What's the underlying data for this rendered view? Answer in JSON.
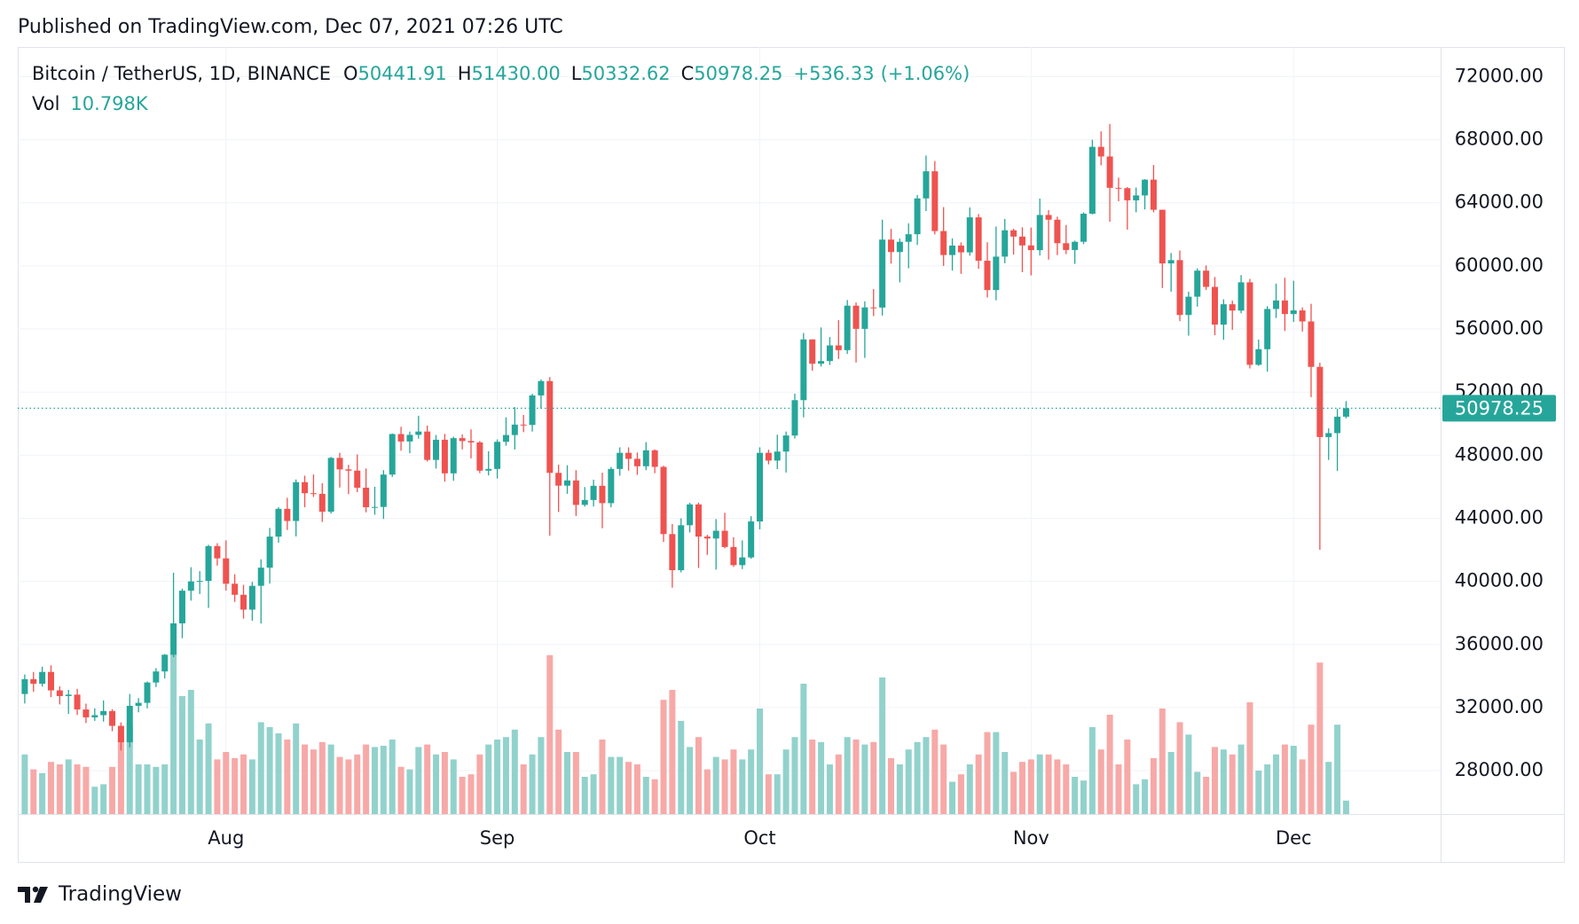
{
  "header": "Published on TradingView.com, Dec 07, 2021 07:26 UTC",
  "footer": "TradingView",
  "chart_data": {
    "type": "candlestick",
    "title": "Bitcoin / TetherUS, 1D, BINANCE",
    "ohlc_legend": [
      {
        "key": "O",
        "value": 50441.91,
        "label": "50441.91"
      },
      {
        "key": "H",
        "value": 51430,
        "label": "51430.00"
      },
      {
        "key": "L",
        "value": 50332.62,
        "label": "50332.62"
      },
      {
        "key": "C",
        "value": 50978.25,
        "label": "50978.25"
      }
    ],
    "change": {
      "value": 536.33,
      "label": "+536.33"
    },
    "change_pct": {
      "value": 1.06,
      "label": "(+1.06%)"
    },
    "volume_title": "Vol",
    "volume_last": {
      "value": 10798,
      "label": "10.798K"
    },
    "last_price": {
      "value": 50978.25,
      "label": "50978.25"
    },
    "up_color": "#26a69a",
    "down_color": "#ef5350",
    "volume_up_color": "#92d2cc",
    "volume_down_color": "#f7a9a7",
    "grid": true,
    "xlim": [
      -0.8,
      161.8
    ],
    "xticks": [
      {
        "value": 23,
        "label": "Aug"
      },
      {
        "value": 54,
        "label": "Sep"
      },
      {
        "value": 84,
        "label": "Oct"
      },
      {
        "value": 115,
        "label": "Nov"
      },
      {
        "value": 145,
        "label": "Dec"
      }
    ],
    "ylim": [
      25250,
      73880
    ],
    "yticks": [
      {
        "value": 28000,
        "label": "28000.00"
      },
      {
        "value": 32000,
        "label": "32000.00"
      },
      {
        "value": 36000,
        "label": "36000.00"
      },
      {
        "value": 40000,
        "label": "40000.00"
      },
      {
        "value": 44000,
        "label": "44000.00"
      },
      {
        "value": 48000,
        "label": "48000.00"
      },
      {
        "value": 52000,
        "label": "52000.00"
      },
      {
        "value": 56000,
        "label": "56000.00"
      },
      {
        "value": 60000,
        "label": "60000.00"
      },
      {
        "value": 64000,
        "label": "64000.00"
      },
      {
        "value": 68000,
        "label": "68000.00"
      },
      {
        "value": 72000,
        "label": "72000.00"
      }
    ],
    "open": [
      32860,
      33800,
      33510,
      34260,
      33090,
      32730,
      32820,
      31880,
      31380,
      31520,
      31780,
      30840,
      29800,
      32110,
      32300,
      33590,
      34290,
      35350,
      37340,
      39410,
      40000,
      40030,
      42240,
      41460,
      39850,
      39150,
      38210,
      39720,
      40870,
      42840,
      44600,
      43830,
      46290,
      45590,
      45550,
      44420,
      47830,
      47100,
      47020,
      45940,
      44700,
      44720,
      46770,
      49340,
      48870,
      49290,
      49500,
      47700,
      48980,
      46850,
      49080,
      48900,
      48810,
      47020,
      47130,
      48850,
      49280,
      49940,
      49920,
      51790,
      52700,
      46880,
      46070,
      46400,
      44850,
      45160,
      46060,
      44960,
      47130,
      48150,
      47770,
      47300,
      48310,
      47260,
      43000,
      40710,
      43560,
      44880,
      42840,
      42720,
      43210,
      42180,
      41030,
      41520,
      43800,
      48150,
      47660,
      48230,
      49250,
      51490,
      55340,
      53800,
      53970,
      54960,
      54660,
      57480,
      56010,
      57370,
      57360,
      61670,
      60880,
      61530,
      62010,
      64280,
      66000,
      62210,
      60690,
      61290,
      60860,
      63080,
      60330,
      58470,
      60590,
      62260,
      61860,
      61300,
      61000,
      63230,
      62930,
      61440,
      61010,
      61530,
      63310,
      67550,
      66940,
      64950,
      64930,
      64160,
      64470,
      65470,
      63560,
      60160,
      60370,
      56890,
      58050,
      59700,
      58670,
      56280,
      57570,
      57170,
      58960,
      53730,
      54720,
      57270,
      57810,
      56950,
      57180,
      56480,
      53600,
      49150,
      49400,
      50441.91
    ],
    "high": [
      34100,
      34260,
      34590,
      34680,
      33340,
      33120,
      33190,
      32250,
      31950,
      32450,
      31900,
      31060,
      32860,
      32600,
      33650,
      34500,
      35400,
      40550,
      39540,
      40900,
      40650,
      42320,
      42420,
      42600,
      40450,
      39780,
      39970,
      41400,
      43390,
      44700,
      45300,
      46460,
      46700,
      46780,
      46220,
      47890,
      48150,
      47390,
      48050,
      47160,
      46000,
      47050,
      49380,
      49800,
      49500,
      50500,
      49880,
      49280,
      49350,
      49180,
      49310,
      49640,
      48900,
      48250,
      49000,
      50400,
      51050,
      50560,
      51900,
      52800,
      52950,
      47400,
      47360,
      47050,
      45980,
      46450,
      46890,
      47250,
      48500,
      48500,
      48170,
      48830,
      48370,
      47330,
      43640,
      44000,
      44980,
      45000,
      42950,
      43950,
      44350,
      42800,
      42600,
      44130,
      48500,
      48350,
      49300,
      49500,
      51900,
      55750,
      55350,
      56100,
      55490,
      56560,
      57840,
      57680,
      57760,
      58530,
      62930,
      62350,
      61730,
      62700,
      64500,
      67000,
      66650,
      63730,
      61750,
      61490,
      63710,
      63290,
      61500,
      62500,
      62980,
      62360,
      62450,
      62430,
      64270,
      63540,
      63120,
      62600,
      61600,
      63400,
      68000,
      68530,
      69000,
      65600,
      65000,
      64970,
      65500,
      66400,
      63570,
      60820,
      60980,
      58370,
      59850,
      60030,
      59300,
      57880,
      57800,
      59420,
      59180,
      55330,
      57450,
      58880,
      59250,
      59060,
      57370,
      57600,
      53860,
      49700,
      50950,
      51430
    ],
    "low": [
      32260,
      33000,
      33330,
      32660,
      32200,
      31600,
      31530,
      31020,
      31160,
      31110,
      30500,
      29280,
      29480,
      31700,
      31950,
      33300,
      33850,
      35200,
      36400,
      38780,
      39200,
      38320,
      41000,
      39420,
      38700,
      37640,
      37510,
      37330,
      39860,
      42450,
      43260,
      42850,
      44700,
      45350,
      43770,
      44300,
      45950,
      45530,
      45660,
      44380,
      44220,
      43960,
      46620,
      48280,
      48130,
      49050,
      47600,
      47150,
      46320,
      46380,
      48370,
      47800,
      46860,
      46720,
      46520,
      48600,
      48360,
      49460,
      49500,
      50950,
      42900,
      44400,
      45550,
      44150,
      44740,
      44750,
      43370,
      44700,
      46700,
      47020,
      46750,
      47050,
      46860,
      42500,
      39600,
      40570,
      43100,
      40850,
      41680,
      40750,
      42100,
      40920,
      40780,
      41430,
      43300,
      47420,
      47120,
      46900,
      49060,
      50400,
      53360,
      53620,
      53720,
      54100,
      54420,
      53880,
      54170,
      56820,
      56850,
      60150,
      58960,
      59850,
      61330,
      63480,
      62000,
      60000,
      59700,
      59500,
      60650,
      59820,
      58000,
      57820,
      60170,
      60720,
      59600,
      59400,
      60660,
      60400,
      60680,
      60750,
      60130,
      61380,
      63270,
      66380,
      62800,
      64100,
      62300,
      63400,
      63580,
      63400,
      58600,
      58370,
      56500,
      55580,
      57420,
      58480,
      55610,
      55320,
      55950,
      57000,
      53500,
      53670,
      53300,
      56700,
      55880,
      56450,
      55840,
      51680,
      42000,
      47700,
      47000,
      50332.62
    ],
    "close": [
      33800,
      33510,
      34260,
      33090,
      32730,
      32820,
      31880,
      31380,
      31520,
      31780,
      30840,
      29800,
      32110,
      32300,
      33590,
      34290,
      35350,
      37340,
      39410,
      40000,
      40030,
      42240,
      41460,
      39850,
      39150,
      38210,
      39720,
      40870,
      42840,
      44600,
      43830,
      46290,
      45590,
      45550,
      44420,
      47830,
      47100,
      47020,
      45940,
      44700,
      44720,
      46770,
      49340,
      48870,
      49290,
      49500,
      47700,
      48980,
      46850,
      49080,
      48900,
      48810,
      47020,
      47130,
      48850,
      49280,
      49940,
      49920,
      51790,
      52700,
      46880,
      46070,
      46400,
      44850,
      45160,
      46060,
      44960,
      47130,
      48150,
      47770,
      47300,
      48310,
      47260,
      43000,
      40710,
      43560,
      44880,
      42840,
      42720,
      43210,
      42180,
      41030,
      41520,
      43800,
      48150,
      47660,
      48230,
      49250,
      51490,
      55340,
      53800,
      53970,
      54960,
      54660,
      57480,
      56010,
      57370,
      57360,
      61670,
      60880,
      61530,
      62010,
      64280,
      66000,
      62210,
      60690,
      61290,
      60860,
      63080,
      60330,
      58470,
      60590,
      62260,
      61860,
      61300,
      61000,
      63230,
      62930,
      61440,
      61010,
      61530,
      63310,
      67550,
      66940,
      64950,
      64930,
      64160,
      64470,
      65470,
      63560,
      60160,
      60370,
      56890,
      58050,
      59700,
      58670,
      56280,
      57570,
      57170,
      58960,
      53730,
      54720,
      57270,
      57810,
      56950,
      57180,
      56480,
      53600,
      49150,
      49400,
      50441.91,
      50978.25
    ],
    "volume": [
      48000,
      36000,
      33000,
      42000,
      40000,
      44000,
      40000,
      38000,
      22000,
      24000,
      38000,
      62000,
      72000,
      40000,
      40000,
      38000,
      40000,
      130000,
      95000,
      100000,
      60000,
      73000,
      44000,
      50000,
      45000,
      48000,
      44000,
      74000,
      70000,
      65000,
      60000,
      73000,
      56000,
      52000,
      58000,
      56000,
      46000,
      44000,
      48000,
      56000,
      54000,
      55000,
      60000,
      38000,
      36000,
      54000,
      56000,
      48000,
      50000,
      44000,
      30000,
      32000,
      48000,
      56000,
      60000,
      62000,
      68000,
      40000,
      48000,
      62000,
      128000,
      68000,
      50000,
      50000,
      30000,
      32000,
      60000,
      46000,
      46000,
      42000,
      40000,
      30000,
      28000,
      92000,
      100000,
      75000,
      54000,
      62000,
      36000,
      46000,
      44000,
      52000,
      44000,
      52000,
      85000,
      32000,
      32000,
      52000,
      62000,
      105000,
      60000,
      58000,
      40000,
      48000,
      62000,
      60000,
      56000,
      58000,
      110000,
      45000,
      40000,
      52000,
      58000,
      62000,
      68000,
      56000,
      26000,
      32000,
      40000,
      48000,
      66000,
      66000,
      50000,
      34000,
      42000,
      44000,
      48000,
      48000,
      44000,
      40000,
      30000,
      27000,
      70000,
      52000,
      80000,
      40000,
      60000,
      24000,
      28000,
      45000,
      85000,
      50000,
      74000,
      64000,
      34000,
      30000,
      54000,
      52000,
      48000,
      56000,
      90000,
      35000,
      40000,
      48000,
      56000,
      55000,
      44000,
      72000,
      122000,
      42000,
      72000,
      10798
    ]
  }
}
